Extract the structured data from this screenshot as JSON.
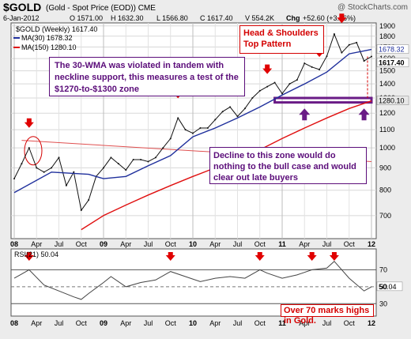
{
  "chart_data": {
    "type": "line",
    "title": "$GOLD",
    "subtitle": "(Gold - Spot Price (EOD)) CME",
    "credit": "@ StockCharts.com",
    "quote": {
      "date": "6-Jan-2012",
      "open": "O 1571.00",
      "high": "H 1632.30",
      "low": "L 1566.80",
      "close": "C 1617.40",
      "volume": "V 554.2K",
      "change_label": "Chg",
      "change": "+52.60 (+3.36%)"
    },
    "legend": [
      {
        "name": "$GOLD (Weekly) 1617.40",
        "color": "#000000"
      },
      {
        "name": "MA(30) 1678.32",
        "color": "#1f2f9c"
      },
      {
        "name": "MA(150) 1280.10",
        "color": "#e01010"
      }
    ],
    "y_ticks": [
      700,
      800,
      900,
      1000,
      1100,
      1200,
      1300,
      1400,
      1500,
      1600,
      1700,
      1800,
      1900
    ],
    "y_range": [
      620,
      1930
    ],
    "y_scale": "log",
    "last_value_labels": [
      {
        "text": "1678.32",
        "value": 1678.32,
        "bg": "#ffffff",
        "fg": "#1f2f9c"
      },
      {
        "text": "1617.40",
        "value": 1617.4,
        "bg": "#ffffff",
        "fg": "#000000"
      },
      {
        "text": "1280.10",
        "value": 1280.1,
        "bg": "#e8e8e8",
        "fg": "#000000"
      }
    ],
    "x_labels": [
      "08",
      "Apr",
      "Jul",
      "Oct",
      "09",
      "Apr",
      "Jul",
      "Oct",
      "10",
      "Apr",
      "Jul",
      "Oct",
      "11",
      "Apr",
      "Jul",
      "Oct",
      "12"
    ],
    "x_range": [
      "2008-01",
      "2012-01"
    ],
    "series": [
      {
        "name": "$GOLD (Weekly)",
        "x": [
          "2008-01",
          "2008-02",
          "2008-03",
          "2008-04",
          "2008-05",
          "2008-06",
          "2008-07",
          "2008-08",
          "2008-09",
          "2008-10",
          "2008-11",
          "2008-12",
          "2009-01",
          "2009-02",
          "2009-03",
          "2009-04",
          "2009-05",
          "2009-06",
          "2009-07",
          "2009-08",
          "2009-09",
          "2009-10",
          "2009-11",
          "2009-12",
          "2010-01",
          "2010-02",
          "2010-03",
          "2010-04",
          "2010-05",
          "2010-06",
          "2010-07",
          "2010-08",
          "2010-09",
          "2010-10",
          "2010-11",
          "2010-12",
          "2011-01",
          "2011-02",
          "2011-03",
          "2011-04",
          "2011-05",
          "2011-06",
          "2011-07",
          "2011-08",
          "2011-09",
          "2011-10",
          "2011-11",
          "2011-12",
          "2012-01"
        ],
        "values": [
          850,
          920,
          1000,
          900,
          880,
          900,
          950,
          820,
          880,
          720,
          760,
          860,
          900,
          950,
          920,
          890,
          940,
          940,
          930,
          950,
          1000,
          1050,
          1170,
          1100,
          1080,
          1110,
          1110,
          1160,
          1210,
          1240,
          1180,
          1230,
          1300,
          1350,
          1380,
          1410,
          1330,
          1400,
          1430,
          1560,
          1530,
          1510,
          1620,
          1820,
          1650,
          1720,
          1740,
          1580,
          1617
        ]
      },
      {
        "name": "MA(30)",
        "x": [
          "2008-01",
          "2008-06",
          "2008-11",
          "2009-01",
          "2009-04",
          "2009-07",
          "2009-10",
          "2010-01",
          "2010-04",
          "2010-07",
          "2010-10",
          "2011-01",
          "2011-04",
          "2011-07",
          "2011-10",
          "2012-01"
        ],
        "values": [
          790,
          880,
          870,
          850,
          860,
          910,
          960,
          1060,
          1110,
          1170,
          1240,
          1320,
          1400,
          1490,
          1640,
          1678
        ]
      },
      {
        "name": "MA(150)",
        "x": [
          "2008-10",
          "2009-01",
          "2009-04",
          "2009-07",
          "2009-10",
          "2010-01",
          "2010-04",
          "2010-07",
          "2010-10",
          "2011-01",
          "2011-04",
          "2011-07",
          "2011-10",
          "2012-01"
        ],
        "values": [
          650,
          700,
          740,
          780,
          820,
          860,
          900,
          940,
          990,
          1050,
          1110,
          1170,
          1230,
          1280
        ]
      }
    ],
    "annotations": [
      {
        "text": "Head & Shoulders Top Pattern"
      },
      {
        "text": "The 30-WMA was violated in tandem with neckline support, this measures a test of the $1270-to-$1300 zone"
      },
      {
        "text": "Decline to this zone would do nothing to the bull case and would clear out late buyers"
      },
      {
        "text": "Over 70 marks highs in Gold."
      }
    ],
    "zone": {
      "low": 1270,
      "high": 1300,
      "from": "2010-12",
      "to": "2012-01"
    },
    "neckline": {
      "from": "2008-02",
      "to": "2012-01",
      "start_value": 1040,
      "end_value": 930
    },
    "rsi": {
      "label": "RSI(21) 50.04",
      "last": "50.04",
      "y_ticks": [
        "70",
        "50",
        "30"
      ],
      "x": [
        "2008-01",
        "2008-02",
        "2008-03",
        "2008-05",
        "2008-07",
        "2008-09",
        "2008-10",
        "2008-11",
        "2009-01",
        "2009-02",
        "2009-04",
        "2009-06",
        "2009-08",
        "2009-10",
        "2009-12",
        "2010-02",
        "2010-04",
        "2010-06",
        "2010-08",
        "2010-10",
        "2010-11",
        "2011-01",
        "2011-03",
        "2011-05",
        "2011-07",
        "2011-08",
        "2011-10",
        "2011-12",
        "2012-01"
      ],
      "values": [
        60,
        65,
        70,
        52,
        45,
        38,
        35,
        42,
        55,
        62,
        50,
        55,
        58,
        68,
        62,
        56,
        60,
        62,
        60,
        70,
        66,
        60,
        64,
        70,
        72,
        80,
        60,
        45,
        50
      ]
    }
  }
}
